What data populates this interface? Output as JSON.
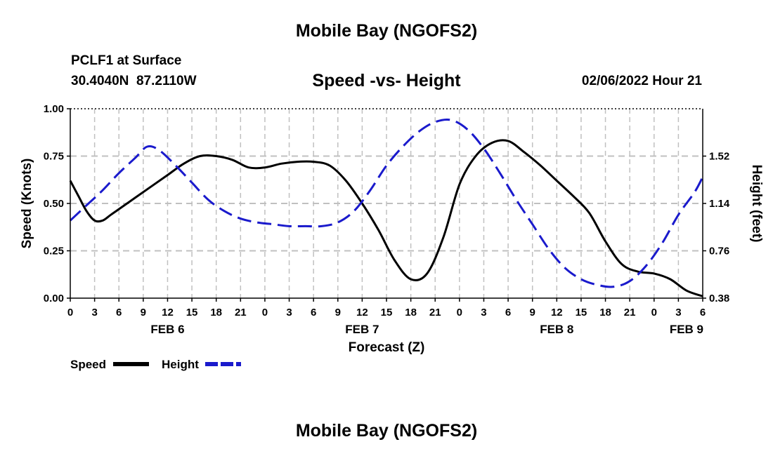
{
  "chart_data": {
    "type": "line",
    "title": "Mobile Bay (NGOFS2)",
    "bottom_title": "Mobile Bay (NGOFS2)",
    "station": "PCLF1 at Surface",
    "coords": "30.4040N  87.2110W",
    "subtitle": "Speed -vs- Height",
    "timestamp": "02/06/2022 Hour 21",
    "xlabel": "Forecast (Z)",
    "ylabel": "Speed (Knots)",
    "y2label": "Height (feet)",
    "xlim": [
      0,
      78
    ],
    "ylim": [
      0,
      1
    ],
    "y_ticks": [
      0.0,
      0.25,
      0.5,
      0.75,
      1.0
    ],
    "y_tick_labels": [
      "0.00",
      "0.25",
      "0.50",
      "0.75",
      "1.00"
    ],
    "y2_ticks": [
      0.0,
      0.25,
      0.5,
      0.75
    ],
    "y2_tick_labels": [
      "0.38",
      "0.76",
      "1.14",
      "1.52"
    ],
    "x_ticks": [
      0,
      3,
      6,
      9,
      12,
      15,
      18,
      21,
      24,
      27,
      30,
      33,
      36,
      39,
      42,
      45,
      48,
      51,
      54,
      57,
      60,
      63,
      66,
      69,
      72,
      75,
      78
    ],
    "x_tick_labels": [
      "0",
      "3",
      "6",
      "9",
      "12",
      "15",
      "18",
      "21",
      "0",
      "3",
      "6",
      "9",
      "12",
      "15",
      "18",
      "21",
      "0",
      "3",
      "6",
      "9",
      "12",
      "15",
      "18",
      "21",
      "0",
      "3",
      "6"
    ],
    "day_labels": [
      {
        "x": 12,
        "label": "FEB 6"
      },
      {
        "x": 36,
        "label": "FEB 7"
      },
      {
        "x": 60,
        "label": "FEB 8"
      },
      {
        "x": 76,
        "label": "FEB 9"
      }
    ],
    "series": [
      {
        "name": "Speed",
        "color": "#000000",
        "dash": "solid",
        "x": [
          0,
          1,
          2,
          3,
          4,
          5,
          6,
          8,
          10,
          12,
          14,
          16,
          18,
          20,
          22,
          24,
          26,
          28,
          30,
          32,
          34,
          36,
          38,
          40,
          42,
          44,
          46,
          48,
          50,
          52,
          54,
          56,
          58,
          60,
          62,
          64,
          66,
          68,
          70,
          72,
          74,
          76,
          78
        ],
        "values": [
          0.62,
          0.54,
          0.46,
          0.41,
          0.41,
          0.44,
          0.47,
          0.53,
          0.59,
          0.65,
          0.71,
          0.75,
          0.75,
          0.73,
          0.69,
          0.69,
          0.71,
          0.72,
          0.72,
          0.7,
          0.62,
          0.5,
          0.36,
          0.2,
          0.1,
          0.13,
          0.32,
          0.6,
          0.75,
          0.82,
          0.83,
          0.77,
          0.7,
          0.62,
          0.54,
          0.45,
          0.3,
          0.18,
          0.14,
          0.13,
          0.1,
          0.04,
          0.01
        ]
      },
      {
        "name": "Height",
        "color": "#1a1acc",
        "dash": "dashed",
        "x": [
          0,
          2,
          4,
          6,
          8,
          9.5,
          11,
          13,
          15,
          17,
          19,
          21,
          23,
          25,
          27,
          29,
          31,
          33,
          35,
          37,
          39,
          41,
          43,
          45,
          47,
          49,
          51,
          53,
          55,
          57,
          59,
          61,
          63,
          65,
          67,
          69,
          71,
          73,
          75,
          77,
          78
        ],
        "values": [
          0.41,
          0.49,
          0.57,
          0.66,
          0.74,
          0.8,
          0.78,
          0.7,
          0.61,
          0.52,
          0.46,
          0.42,
          0.4,
          0.39,
          0.38,
          0.38,
          0.38,
          0.4,
          0.46,
          0.57,
          0.7,
          0.8,
          0.88,
          0.93,
          0.94,
          0.89,
          0.79,
          0.66,
          0.52,
          0.39,
          0.26,
          0.16,
          0.1,
          0.07,
          0.06,
          0.09,
          0.17,
          0.29,
          0.44,
          0.56,
          0.64
        ]
      }
    ],
    "legend": [
      {
        "label": "Speed",
        "color": "#000000",
        "dash": "solid"
      },
      {
        "label": "Height",
        "color": "#1a1acc",
        "dash": "dashed"
      }
    ],
    "legend_position": "bottom-left",
    "grid": true
  }
}
